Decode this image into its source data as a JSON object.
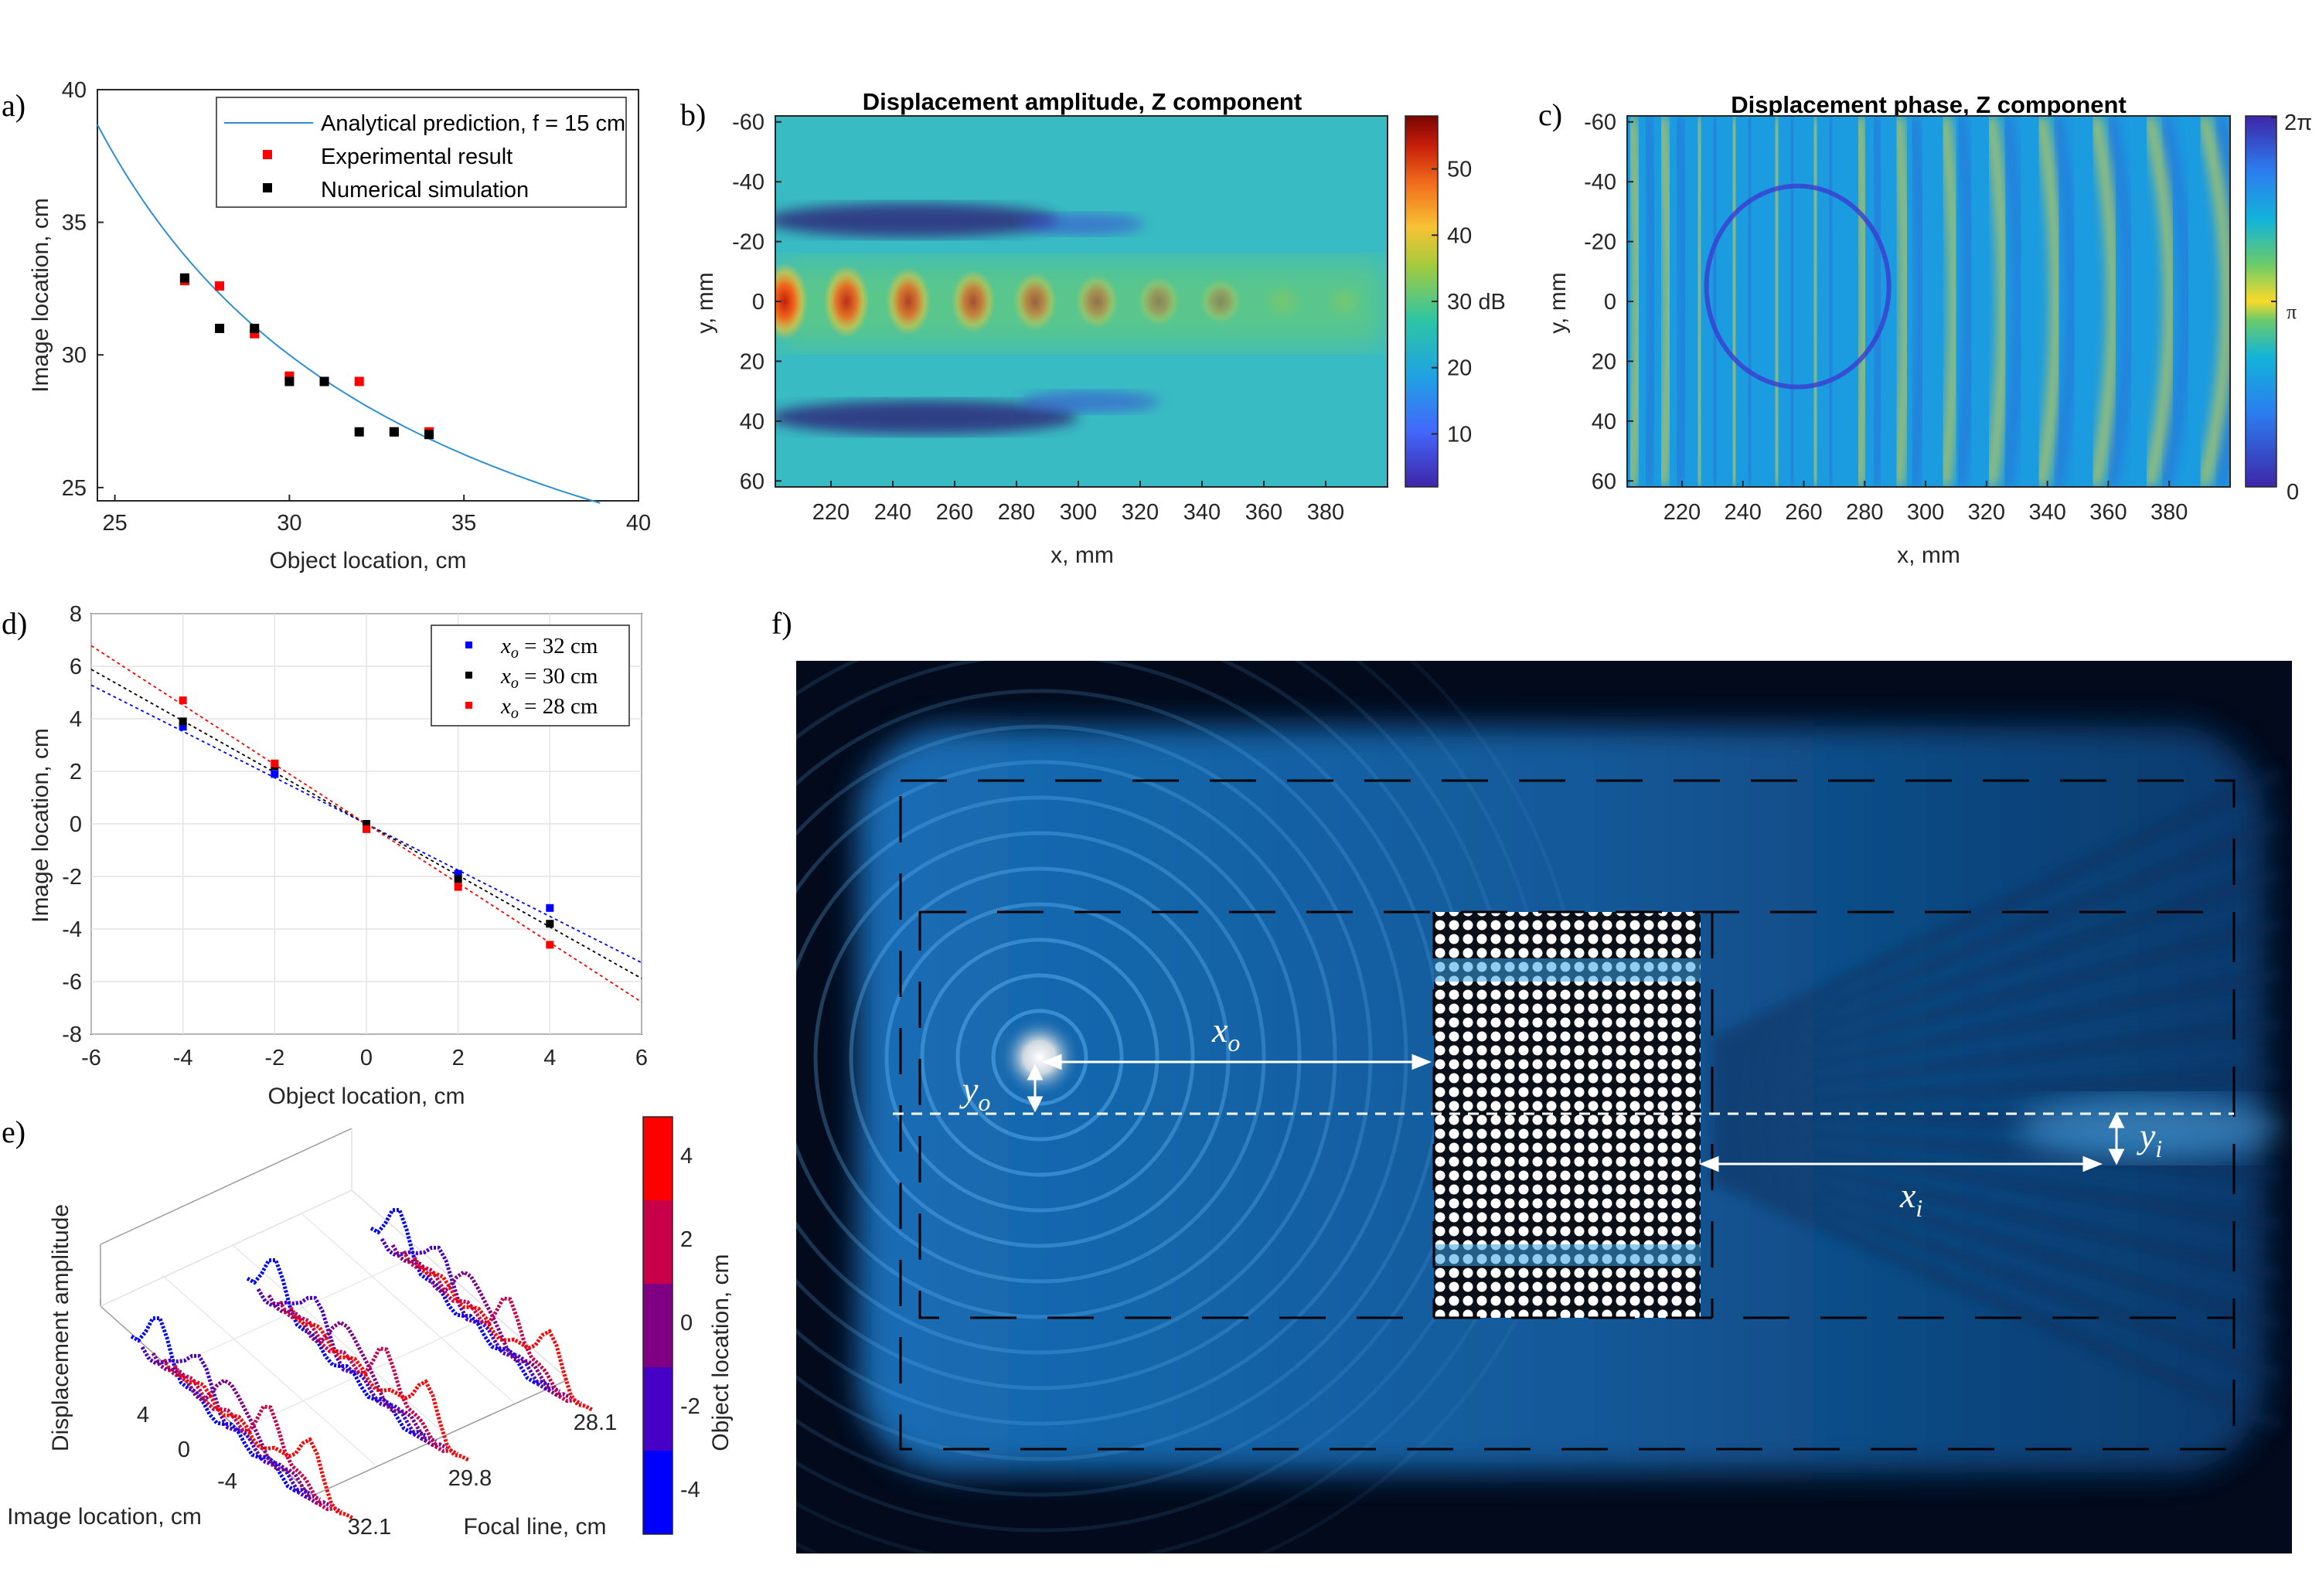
{
  "chart_data": [
    {
      "id": "a",
      "panel_label": "a)",
      "type": "scatter",
      "xlabel": "Object location, cm",
      "ylabel": "Image location, cm",
      "xlim": [
        24.5,
        40
      ],
      "ylim": [
        24.5,
        40
      ],
      "xticks": [
        25,
        30,
        35,
        40
      ],
      "yticks": [
        25,
        30,
        35,
        40
      ],
      "series": [
        {
          "name": "Analytical prediction, f = 15 cm",
          "kind": "line",
          "color": "#2e8fd6",
          "focal_length_cm": 15
        },
        {
          "name": "Experimental result",
          "kind": "marker",
          "color": "#ff0000",
          "x": [
            27,
            28,
            29,
            30,
            31,
            32,
            33,
            34
          ],
          "y": [
            32.8,
            32.6,
            30.8,
            29.2,
            29.0,
            29.0,
            27.1,
            27.1
          ]
        },
        {
          "name": "Numerical simulation",
          "kind": "marker",
          "color": "#000000",
          "x": [
            27,
            28,
            29,
            30,
            31,
            32,
            33,
            34
          ],
          "y": [
            32.9,
            31.0,
            31.0,
            29.0,
            29.0,
            27.1,
            27.1,
            27.0
          ]
        }
      ]
    },
    {
      "id": "b",
      "panel_label": "b)",
      "type": "heatmap",
      "title": "Displacement amplitude, Z component",
      "xlabel": "x, mm",
      "ylabel": "y, mm",
      "xticks": [
        220,
        240,
        260,
        280,
        300,
        320,
        340,
        360,
        380
      ],
      "yticks": [
        -60,
        -40,
        -20,
        0,
        20,
        40,
        60
      ],
      "xlim": [
        202,
        400
      ],
      "ylim": [
        -62,
        62
      ],
      "colorbar_ticks": [
        10,
        20,
        30,
        40,
        50
      ],
      "colorbar_tick_labels": [
        "10",
        "20",
        "30 dB",
        "40",
        "50"
      ],
      "colorbar_range": [
        2,
        58
      ],
      "focus_spot_x_mm": [
        205,
        225,
        245,
        266,
        286,
        306,
        326,
        346,
        366,
        386
      ]
    },
    {
      "id": "c",
      "panel_label": "c)",
      "type": "heatmap",
      "title": "Displacement phase, Z component",
      "xlabel": "x, mm",
      "ylabel": "y, mm",
      "xticks": [
        220,
        240,
        260,
        280,
        300,
        320,
        340,
        360,
        380
      ],
      "yticks": [
        -60,
        -40,
        -20,
        0,
        20,
        40,
        60
      ],
      "xlim": [
        202,
        400
      ],
      "ylim": [
        -62,
        62
      ],
      "colorbar_tick_labels": [
        "2π",
        "π",
        "0"
      ]
    },
    {
      "id": "d",
      "panel_label": "d)",
      "type": "scatter",
      "xlabel": "Object location, cm",
      "ylabel": "Image location, cm",
      "xlim": [
        -6,
        6
      ],
      "ylim": [
        -8,
        8
      ],
      "xticks": [
        -6,
        -4,
        -2,
        0,
        2,
        4,
        6
      ],
      "yticks": [
        -8,
        -6,
        -4,
        -2,
        0,
        2,
        4,
        6,
        8
      ],
      "series": [
        {
          "name": "x_o = 32 cm",
          "label_var": "x",
          "label_sub": "o",
          "label_rest": " = 32 cm",
          "color": "#0000ff",
          "x": [
            -4,
            -2,
            0,
            2,
            4
          ],
          "y": [
            3.7,
            1.9,
            0.0,
            -1.9,
            -3.2
          ],
          "fit_slope": -0.88
        },
        {
          "name": "x_o = 30 cm",
          "label_var": "x",
          "label_sub": "o",
          "label_rest": " = 30 cm",
          "color": "#000000",
          "x": [
            -4,
            -2,
            0,
            2,
            4
          ],
          "y": [
            3.9,
            2.2,
            0.0,
            -2.1,
            -3.8
          ],
          "fit_slope": -0.98
        },
        {
          "name": "x_o = 28 cm",
          "label_var": "x",
          "label_sub": "o",
          "label_rest": " = 28 cm",
          "color": "#ff0000",
          "x": [
            -4,
            -2,
            0,
            2,
            4
          ],
          "y": [
            4.7,
            2.3,
            -0.2,
            -2.4,
            -4.6
          ],
          "fit_slope": -1.13
        }
      ]
    },
    {
      "id": "e",
      "panel_label": "e)",
      "type": "line",
      "zlabel": "Displacement amplitude",
      "xlabel": "Image location, cm",
      "ylabel": "Focal line, cm",
      "image_ticks": [
        "4",
        "0",
        "-4"
      ],
      "focal_ticks": [
        "28.1",
        "29.8",
        "32.1"
      ],
      "colorbar_label": "Object location, cm",
      "colorbar_ticks": [
        "4",
        "2",
        "0",
        "-2",
        "-4"
      ],
      "colorbar_colors": [
        "#ff0000",
        "#c8004a",
        "#7f0082",
        "#4700c6",
        "#0000ff"
      ]
    }
  ],
  "diagram_f": {
    "panel_label": "f)",
    "labels": {
      "x_o": "x",
      "x_o_sub": "o",
      "y_o": "y",
      "y_o_sub": "o",
      "x_i": "x",
      "x_i_sub": "i",
      "y_i": "y",
      "y_i_sub": "i"
    }
  }
}
